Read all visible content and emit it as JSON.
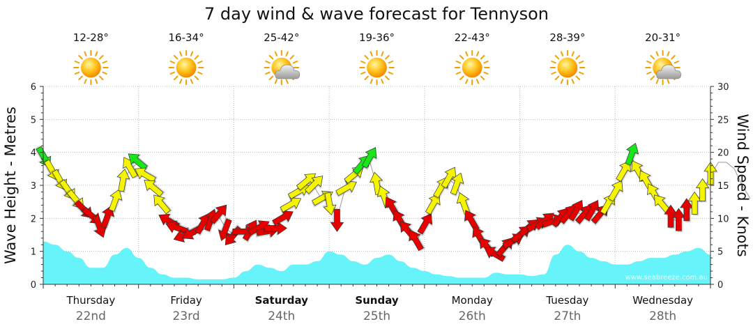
{
  "chart_data": {
    "type": "line",
    "title": "7 day wind & wave forecast for Tennyson",
    "ylabel_left": "Wave Height - Metres",
    "ylabel_right": "Wind Speed - Knots",
    "ylim_left": [
      0,
      6
    ],
    "ylim_right": [
      0,
      30
    ],
    "yticks_left": [
      "0",
      "1",
      "2",
      "3",
      "4",
      "5",
      "6"
    ],
    "yticks_right": [
      "0",
      "5",
      "10",
      "15",
      "20",
      "25",
      "30"
    ],
    "days": [
      {
        "name": "Thursday",
        "date": "22nd",
        "bold": false,
        "temp": "12-28°",
        "icon": "sun-icon"
      },
      {
        "name": "Friday",
        "date": "23rd",
        "bold": false,
        "temp": "16-34°",
        "icon": "sun-icon"
      },
      {
        "name": "Saturday",
        "date": "24th",
        "bold": true,
        "temp": "25-42°",
        "icon": "sun-cloud-icon"
      },
      {
        "name": "Sunday",
        "date": "25th",
        "bold": true,
        "temp": "19-36°",
        "icon": "sun-icon"
      },
      {
        "name": "Monday",
        "date": "26th",
        "bold": false,
        "temp": "22-43°",
        "icon": "sun-icon"
      },
      {
        "name": "Tuesday",
        "date": "27th",
        "bold": false,
        "temp": "28-39°",
        "icon": "sun-icon"
      },
      {
        "name": "Wednesday",
        "date": "28th",
        "bold": false,
        "temp": "20-31°",
        "icon": "sun-cloud-icon"
      }
    ],
    "credit": "www.seabreeze.com.au",
    "grid": true,
    "colors": {
      "wave": "#66f4fa",
      "light_wind": "#e60000",
      "moderate_wind": "#f5f500",
      "strong_wind": "#19e619"
    },
    "wave_series": {
      "name": "Wave Height",
      "x_hours": [
        0,
        3,
        6,
        9,
        12,
        15,
        18,
        21,
        24,
        27,
        30,
        33,
        36,
        39,
        42,
        45,
        48,
        51,
        54,
        57,
        60,
        63,
        66,
        69,
        72,
        75,
        78,
        81,
        84,
        87,
        90,
        93,
        96,
        99,
        102,
        105,
        108,
        111,
        114,
        117,
        120,
        123,
        126,
        129,
        132,
        135,
        138,
        141,
        144,
        147,
        150,
        153,
        156,
        159,
        162,
        165,
        168
      ],
      "values": [
        1.3,
        1.2,
        1.0,
        0.8,
        0.5,
        0.5,
        0.9,
        1.1,
        0.8,
        0.5,
        0.3,
        0.2,
        0.2,
        0.15,
        0.15,
        0.15,
        0.2,
        0.4,
        0.6,
        0.5,
        0.4,
        0.6,
        0.6,
        0.7,
        1.0,
        0.9,
        0.7,
        0.6,
        0.8,
        0.9,
        0.7,
        0.5,
        0.4,
        0.3,
        0.25,
        0.2,
        0.2,
        0.2,
        0.35,
        0.3,
        0.3,
        0.25,
        0.3,
        0.9,
        1.2,
        1.0,
        0.8,
        0.7,
        0.6,
        0.6,
        0.7,
        0.8,
        0.8,
        0.9,
        1.0,
        1.1,
        0.9
      ]
    },
    "wind_series": {
      "name": "Wind Speed",
      "points": [
        {
          "h": 0,
          "kn": 19.5,
          "dir": 150
        },
        {
          "h": 2,
          "kn": 17.5,
          "dir": 150
        },
        {
          "h": 4,
          "kn": 16.0,
          "dir": 150
        },
        {
          "h": 6,
          "kn": 14.5,
          "dir": 145
        },
        {
          "h": 8,
          "kn": 13.0,
          "dir": 140
        },
        {
          "h": 10,
          "kn": 11.5,
          "dir": 135
        },
        {
          "h": 12,
          "kn": 10.5,
          "dir": 130
        },
        {
          "h": 14,
          "kn": 9.0,
          "dir": 160
        },
        {
          "h": 16,
          "kn": 10.0,
          "dir": 20
        },
        {
          "h": 18,
          "kn": 12.5,
          "dir": 20
        },
        {
          "h": 20,
          "kn": 15.5,
          "dir": 10
        },
        {
          "h": 22,
          "kn": 17.5,
          "dir": 330
        },
        {
          "h": 24,
          "kn": 18.5,
          "dir": 310
        },
        {
          "h": 26,
          "kn": 16.5,
          "dir": 300
        },
        {
          "h": 28,
          "kn": 14.5,
          "dir": 310
        },
        {
          "h": 30,
          "kn": 12.0,
          "dir": 320
        },
        {
          "h": 32,
          "kn": 9.5,
          "dir": 300
        },
        {
          "h": 34,
          "kn": 8.5,
          "dir": 290
        },
        {
          "h": 36,
          "kn": 7.5,
          "dir": 250
        },
        {
          "h": 38,
          "kn": 8.0,
          "dir": 240
        },
        {
          "h": 40,
          "kn": 9.0,
          "dir": 30
        },
        {
          "h": 42,
          "kn": 9.5,
          "dir": 20
        },
        {
          "h": 44,
          "kn": 10.5,
          "dir": 40
        },
        {
          "h": 46,
          "kn": 8.5,
          "dir": 200
        },
        {
          "h": 48,
          "kn": 7.5,
          "dir": 220
        },
        {
          "h": 50,
          "kn": 8.0,
          "dir": 90
        },
        {
          "h": 52,
          "kn": 8.0,
          "dir": 30
        },
        {
          "h": 54,
          "kn": 8.5,
          "dir": 60
        },
        {
          "h": 56,
          "kn": 8.0,
          "dir": 80
        },
        {
          "h": 58,
          "kn": 8.5,
          "dir": 90
        },
        {
          "h": 60,
          "kn": 10.0,
          "dir": 60
        },
        {
          "h": 62,
          "kn": 12.0,
          "dir": 60
        },
        {
          "h": 64,
          "kn": 14.0,
          "dir": 60
        },
        {
          "h": 66,
          "kn": 15.5,
          "dir": 50
        },
        {
          "h": 68,
          "kn": 15.0,
          "dir": 45
        },
        {
          "h": 70,
          "kn": 13.0,
          "dir": 60
        },
        {
          "h": 72,
          "kn": 12.5,
          "dir": 170
        },
        {
          "h": 74,
          "kn": 10.0,
          "dir": 180
        },
        {
          "h": 76,
          "kn": 14.5,
          "dir": 60
        },
        {
          "h": 78,
          "kn": 16.5,
          "dir": 50
        },
        {
          "h": 80,
          "kn": 18.0,
          "dir": 40
        },
        {
          "h": 82,
          "kn": 19.0,
          "dir": 30
        },
        {
          "h": 84,
          "kn": 15.0,
          "dir": 350
        },
        {
          "h": 86,
          "kn": 13.0,
          "dir": 340
        },
        {
          "h": 88,
          "kn": 11.5,
          "dir": 330
        },
        {
          "h": 90,
          "kn": 9.5,
          "dir": 330
        },
        {
          "h": 92,
          "kn": 8.0,
          "dir": 320
        },
        {
          "h": 94,
          "kn": 6.5,
          "dir": 330
        },
        {
          "h": 96,
          "kn": 9.0,
          "dir": 30
        },
        {
          "h": 98,
          "kn": 12.0,
          "dir": 30
        },
        {
          "h": 100,
          "kn": 14.5,
          "dir": 30
        },
        {
          "h": 102,
          "kn": 16.0,
          "dir": 30
        },
        {
          "h": 104,
          "kn": 15.0,
          "dir": 20
        },
        {
          "h": 106,
          "kn": 12.0,
          "dir": 340
        },
        {
          "h": 108,
          "kn": 9.5,
          "dir": 330
        },
        {
          "h": 110,
          "kn": 7.0,
          "dir": 330
        },
        {
          "h": 112,
          "kn": 5.5,
          "dir": 320
        },
        {
          "h": 114,
          "kn": 4.5,
          "dir": 300
        },
        {
          "h": 116,
          "kn": 5.5,
          "dir": 40
        },
        {
          "h": 118,
          "kn": 6.5,
          "dir": 60
        },
        {
          "h": 120,
          "kn": 7.5,
          "dir": 50
        },
        {
          "h": 122,
          "kn": 8.5,
          "dir": 50
        },
        {
          "h": 124,
          "kn": 9.0,
          "dir": 60
        },
        {
          "h": 126,
          "kn": 9.5,
          "dir": 50
        },
        {
          "h": 128,
          "kn": 9.5,
          "dir": 70
        },
        {
          "h": 130,
          "kn": 10.0,
          "dir": 40
        },
        {
          "h": 132,
          "kn": 10.5,
          "dir": 40
        },
        {
          "h": 134,
          "kn": 11.0,
          "dir": 30
        },
        {
          "h": 136,
          "kn": 10.5,
          "dir": 40
        },
        {
          "h": 138,
          "kn": 11.0,
          "dir": 30
        },
        {
          "h": 140,
          "kn": 10.5,
          "dir": 40
        },
        {
          "h": 142,
          "kn": 12.0,
          "dir": 30
        },
        {
          "h": 144,
          "kn": 14.0,
          "dir": 30
        },
        {
          "h": 146,
          "kn": 17.0,
          "dir": 30
        },
        {
          "h": 148,
          "kn": 19.5,
          "dir": 20
        },
        {
          "h": 150,
          "kn": 17.0,
          "dir": 330
        },
        {
          "h": 152,
          "kn": 15.5,
          "dir": 330
        },
        {
          "h": 154,
          "kn": 13.5,
          "dir": 330
        },
        {
          "h": 156,
          "kn": 12.0,
          "dir": 320
        },
        {
          "h": 158,
          "kn": 10.0,
          "dir": 0
        },
        {
          "h": 160,
          "kn": 9.5,
          "dir": 0
        },
        {
          "h": 162,
          "kn": 11.0,
          "dir": 0
        },
        {
          "h": 164,
          "kn": 12.0,
          "dir": 0
        },
        {
          "h": 166,
          "kn": 14.0,
          "dir": 0
        },
        {
          "h": 168,
          "kn": 16.5,
          "dir": 0
        },
        {
          "h": 170,
          "kn": 18.5,
          "dir": 0
        },
        {
          "h": 172,
          "kn": 18.5,
          "dir": 0
        },
        {
          "h": 174,
          "kn": 17.5,
          "dir": 330
        },
        {
          "h": 176,
          "kn": 15.0,
          "dir": 330
        },
        {
          "h": 178,
          "kn": 13.0,
          "dir": 330
        }
      ]
    }
  }
}
